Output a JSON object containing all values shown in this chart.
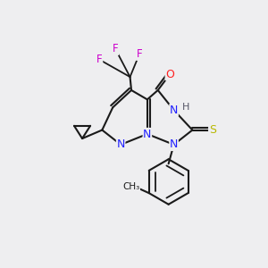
{
  "background_color": "#eeeef0",
  "bond_color": "#1a1a1a",
  "atom_colors": {
    "N": "#2020ff",
    "O": "#ff2020",
    "S": "#b8b800",
    "F": "#cc00cc",
    "H": "#555566",
    "C": "#1a1a1a"
  },
  "figsize": [
    3.0,
    3.0
  ],
  "dpi": 100
}
